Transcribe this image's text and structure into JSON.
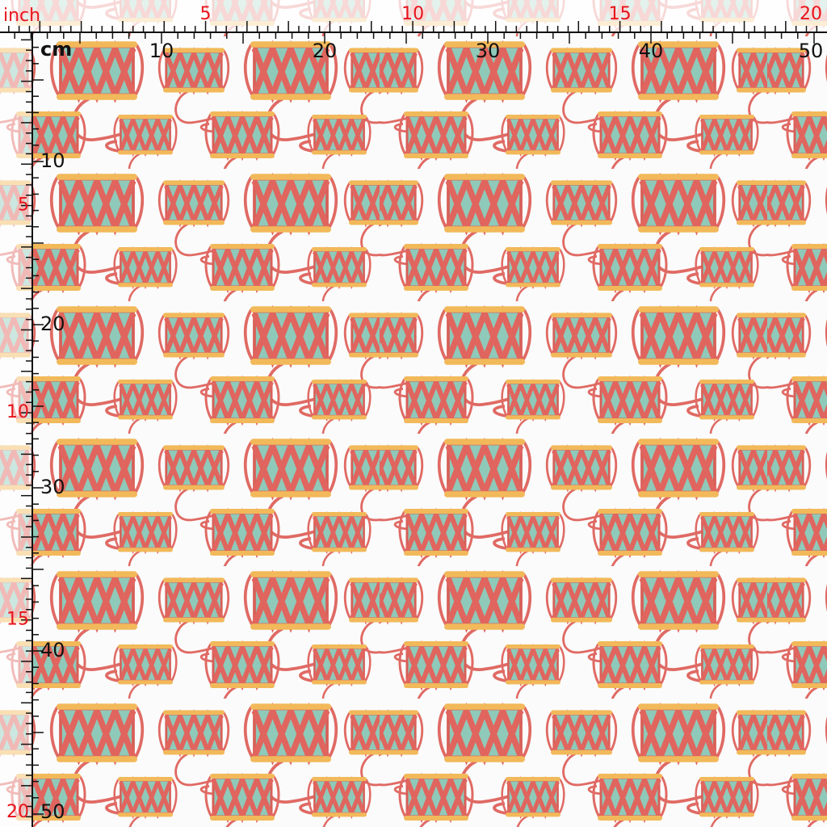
{
  "ruler": {
    "inch_unit": "inch",
    "cm_unit": "cm",
    "top_inch_labels": [
      5,
      10,
      15,
      20
    ],
    "top_cm_labels": [
      10,
      20,
      30,
      40,
      50
    ],
    "left_cm_labels": [
      10,
      20,
      30,
      40,
      50
    ],
    "left_inch_labels": [
      5,
      10,
      15,
      20
    ]
  }
}
